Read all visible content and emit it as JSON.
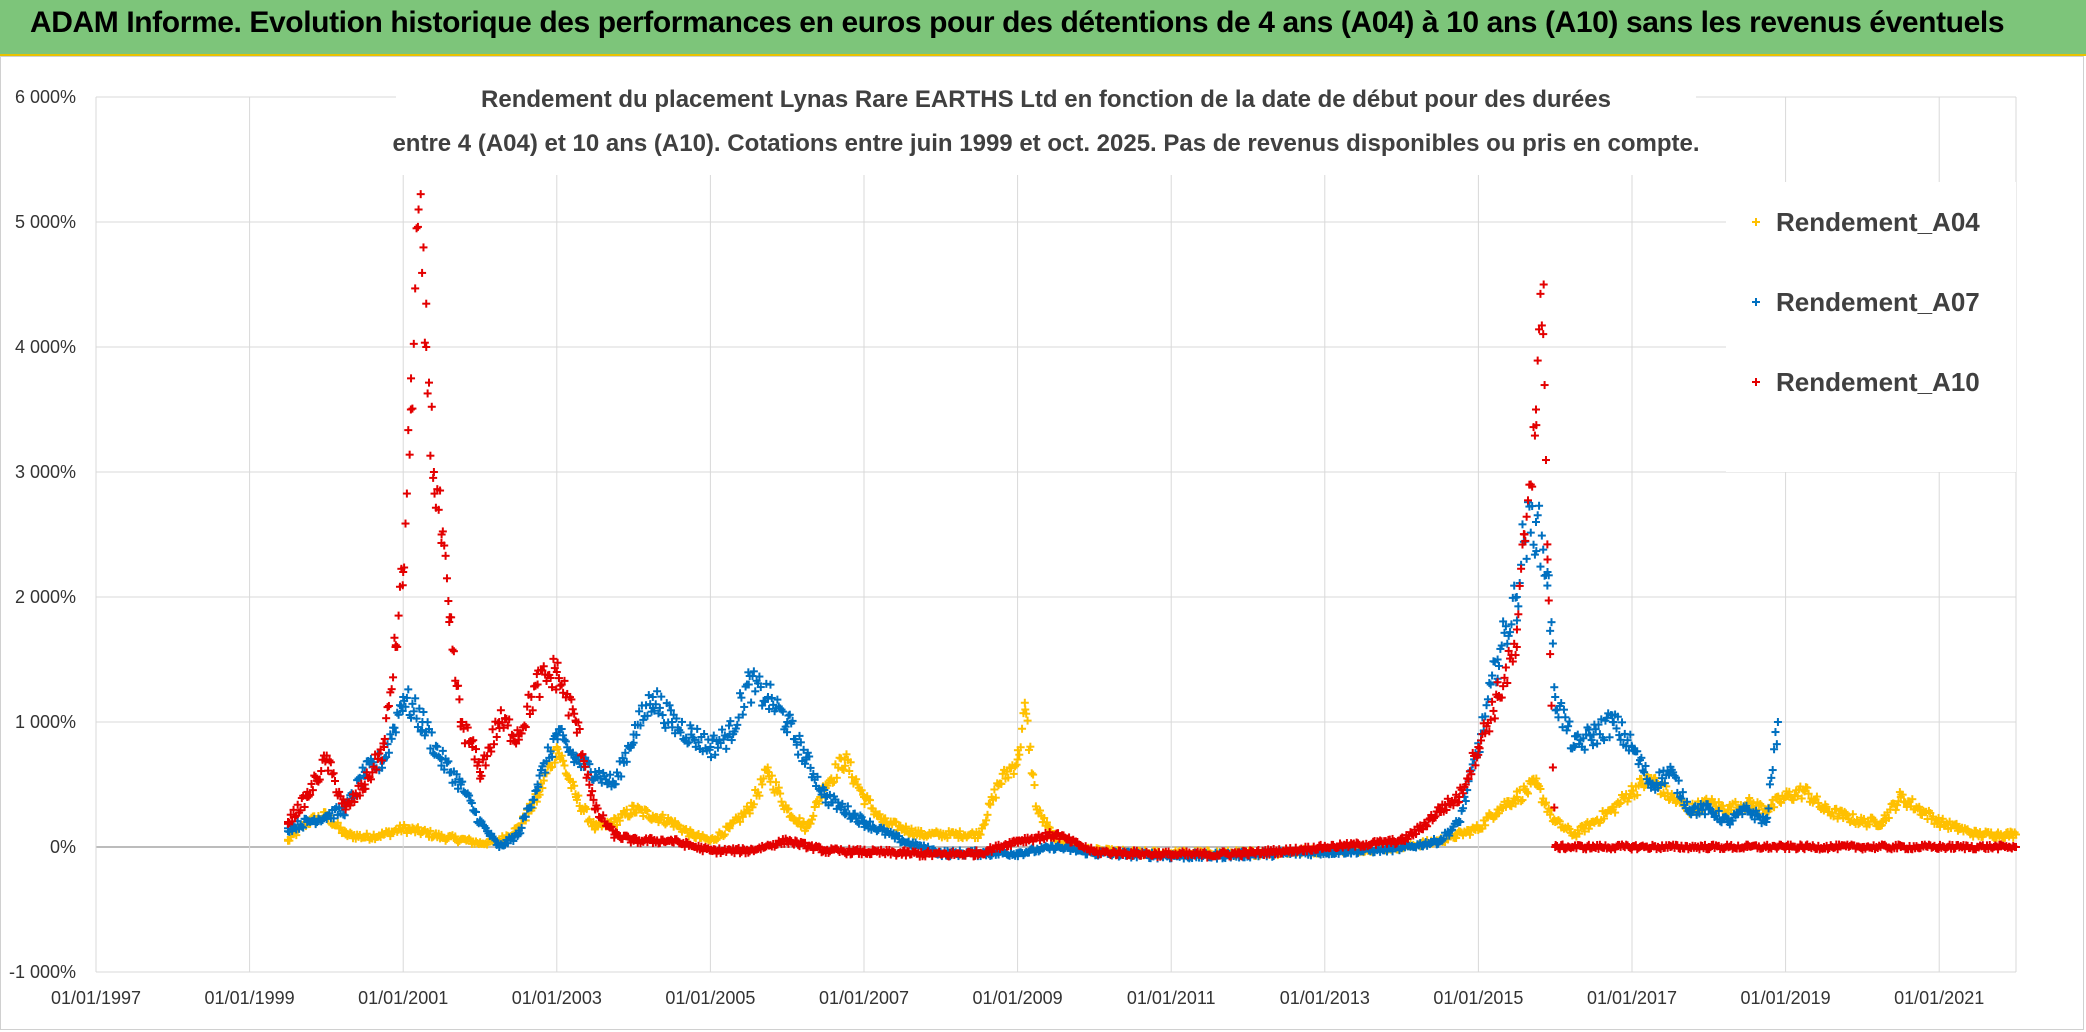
{
  "header": {
    "title": "ADAM Informe. Evolution historique des performances en euros pour des détentions de 4 ans (A04) à 10 ans (A10) sans les revenus éventuels"
  },
  "chart_data": {
    "type": "scatter",
    "title_line1": "Rendement du placement Lynas Rare EARTHS Ltd en fonction de la date de début pour des durées",
    "title_line2": "entre 4 (A04) et 10 ans (A10). Cotations entre juin 1999 et oct. 2025. Pas de revenus disponibles ou pris en compte.",
    "xlabel": "",
    "ylabel": "",
    "x_ticks": [
      "01/01/1997",
      "01/01/1999",
      "01/01/2001",
      "01/01/2003",
      "01/01/2005",
      "01/01/2007",
      "01/01/2009",
      "01/01/2011",
      "01/01/2013",
      "01/01/2015",
      "01/01/2017",
      "01/01/2019",
      "01/01/2021"
    ],
    "xlim": [
      1997.0,
      2022.0
    ],
    "y_ticks": [
      "-1 000%",
      "0%",
      "1 000%",
      "2 000%",
      "3 000%",
      "4 000%",
      "5 000%",
      "6 000%"
    ],
    "ylim": [
      -1000,
      6000
    ],
    "grid": true,
    "legend_position": "top-right",
    "marker": "+",
    "series": [
      {
        "name": "Rendement_A04",
        "color": "#ffc000",
        "x": [
          1999.5,
          1999.75,
          2000.0,
          2000.25,
          2000.5,
          2000.75,
          2001.0,
          2001.25,
          2001.5,
          2001.75,
          2002.0,
          2002.25,
          2002.5,
          2002.75,
          2003.0,
          2003.25,
          2003.5,
          2003.75,
          2004.0,
          2004.25,
          2004.5,
          2004.75,
          2005.0,
          2005.25,
          2005.5,
          2005.75,
          2006.0,
          2006.25,
          2006.5,
          2006.75,
          2007.0,
          2007.25,
          2007.5,
          2007.75,
          2008.0,
          2008.25,
          2008.5,
          2008.75,
          2009.0,
          2009.1,
          2009.25,
          2009.5,
          2009.75,
          2010.0,
          2010.5,
          2011.0,
          2011.5,
          2012.0,
          2012.5,
          2013.0,
          2013.5,
          2014.0,
          2014.5,
          2015.0,
          2015.25,
          2015.5,
          2015.75,
          2016.0,
          2016.25,
          2016.5,
          2016.75,
          2017.0,
          2017.25,
          2017.5,
          2017.75,
          2018.0,
          2018.25,
          2018.5,
          2018.75,
          2019.0,
          2019.25,
          2019.5,
          2019.75,
          2020.0,
          2020.25,
          2020.5,
          2020.75,
          2021.0,
          2021.25,
          2021.5,
          2021.75,
          2022.0
        ],
        "values": [
          50,
          200,
          250,
          100,
          80,
          100,
          150,
          120,
          80,
          60,
          30,
          50,
          150,
          400,
          800,
          400,
          150,
          200,
          300,
          250,
          200,
          100,
          50,
          150,
          300,
          600,
          300,
          150,
          500,
          700,
          400,
          200,
          150,
          100,
          100,
          100,
          100,
          500,
          700,
          1100,
          300,
          50,
          0,
          -30,
          -50,
          -50,
          -50,
          -50,
          -40,
          -30,
          -20,
          0,
          50,
          150,
          300,
          400,
          500,
          200,
          100,
          200,
          300,
          450,
          550,
          400,
          300,
          350,
          300,
          350,
          300,
          400,
          450,
          300,
          250,
          200,
          200,
          400,
          300,
          200,
          150,
          100,
          100,
          100
        ]
      },
      {
        "name": "Rendement_A07",
        "color": "#0070c0",
        "x": [
          1999.5,
          1999.75,
          2000.0,
          2000.25,
          2000.5,
          2000.75,
          2001.0,
          2001.25,
          2001.5,
          2001.75,
          2002.0,
          2002.25,
          2002.5,
          2002.75,
          2003.0,
          2003.25,
          2003.5,
          2003.75,
          2004.0,
          2004.25,
          2004.5,
          2004.75,
          2005.0,
          2005.25,
          2005.5,
          2005.75,
          2006.0,
          2006.25,
          2006.5,
          2006.75,
          2007.0,
          2007.5,
          2008.0,
          2008.5,
          2009.0,
          2009.5,
          2010.0,
          2010.5,
          2011.0,
          2011.5,
          2012.0,
          2012.5,
          2013.0,
          2013.5,
          2014.0,
          2014.5,
          2014.75,
          2015.0,
          2015.25,
          2015.5,
          2015.6,
          2015.75,
          2015.9,
          2016.0,
          2016.25,
          2016.5,
          2016.75,
          2017.0,
          2017.25,
          2017.5,
          2017.75,
          2018.0,
          2018.25,
          2018.5,
          2018.75,
          2018.9
        ],
        "values": [
          150,
          200,
          250,
          300,
          600,
          700,
          1200,
          1000,
          700,
          500,
          200,
          0,
          100,
          500,
          900,
          700,
          600,
          500,
          900,
          1200,
          1000,
          900,
          800,
          900,
          1300,
          1200,
          1000,
          700,
          400,
          300,
          200,
          50,
          -50,
          -50,
          -50,
          0,
          -50,
          -60,
          -70,
          -70,
          -60,
          -50,
          -40,
          -30,
          -10,
          50,
          200,
          800,
          1500,
          2000,
          2500,
          2600,
          2200,
          1200,
          800,
          900,
          1000,
          800,
          500,
          600,
          300,
          300,
          200,
          300,
          200,
          1000
        ]
      },
      {
        "name": "Rendement_A10",
        "color": "#e30000",
        "x": [
          1999.5,
          1999.75,
          2000.0,
          2000.25,
          2000.5,
          2000.75,
          2000.9,
          2001.0,
          2001.1,
          2001.2,
          2001.3,
          2001.4,
          2001.5,
          2001.6,
          2001.75,
          2001.9,
          2002.0,
          2002.25,
          2002.5,
          2002.75,
          2003.0,
          2003.25,
          2003.5,
          2003.75,
          2004.0,
          2004.5,
          2005.0,
          2005.5,
          2006.0,
          2006.5,
          2007.0,
          2007.5,
          2008.0,
          2008.5,
          2009.0,
          2009.5,
          2010.0,
          2010.5,
          2011.0,
          2011.5,
          2012.0,
          2012.5,
          2013.0,
          2013.5,
          2014.0,
          2014.25,
          2014.5,
          2014.75,
          2015.0,
          2015.25,
          2015.5,
          2015.6,
          2015.75,
          2015.85,
          2015.9,
          2016.0,
          2016.5,
          2017.0,
          2017.5,
          2018.0,
          2018.5,
          2019.0,
          2019.5,
          2020.0,
          2020.5,
          2021.0,
          2021.5,
          2022.0
        ],
        "values": [
          200,
          400,
          700,
          300,
          500,
          800,
          1600,
          2200,
          3500,
          5100,
          4000,
          3000,
          2500,
          1800,
          1000,
          800,
          600,
          1000,
          900,
          1300,
          1400,
          1000,
          300,
          100,
          50,
          50,
          -30,
          -30,
          50,
          -30,
          -40,
          -50,
          -60,
          -50,
          50,
          100,
          -40,
          -50,
          -60,
          -60,
          -50,
          -30,
          0,
          20,
          50,
          150,
          300,
          400,
          800,
          1200,
          1600,
          2500,
          3500,
          4500,
          2300,
          0,
          0,
          0,
          0,
          0,
          0,
          0,
          0,
          0,
          0,
          0,
          0,
          0
        ]
      }
    ]
  }
}
